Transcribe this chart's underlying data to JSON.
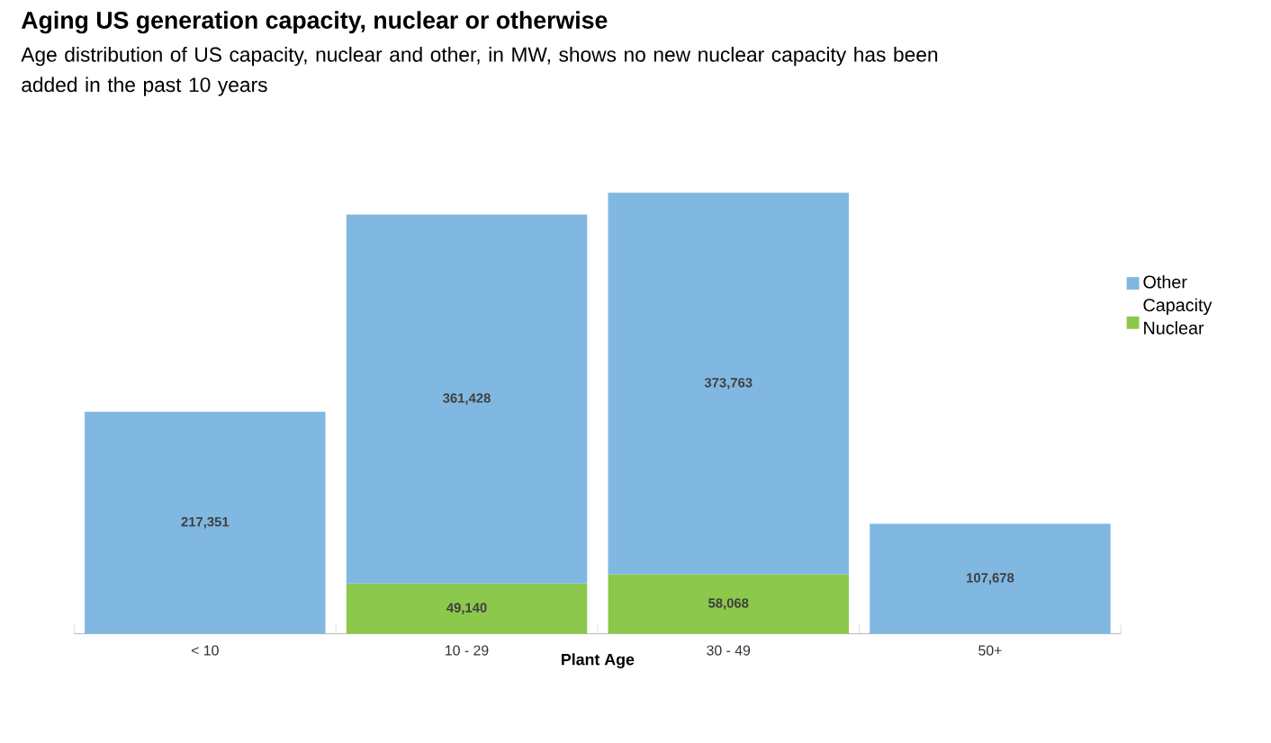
{
  "chart_data": {
    "type": "bar",
    "title": "Aging US generation capacity, nuclear or otherwise",
    "subtitle": "Age distribution of US capacity, nuclear and other, in MW, shows no new nuclear capacity has been added in the past 10 years",
    "xlabel": "Plant Age",
    "categories": [
      "< 10",
      "10 - 29",
      "30 - 49",
      "50+"
    ],
    "stacked": true,
    "series": [
      {
        "name": "Nuclear",
        "color": "#8cc84b",
        "values": [
          null,
          49140,
          58068,
          null
        ],
        "value_labels": [
          null,
          "49,140",
          "58,068",
          null
        ]
      },
      {
        "name": "Other Capacity",
        "color": "#80b8e2",
        "values": [
          217351,
          361428,
          373763,
          107678
        ],
        "value_labels": [
          "217,351",
          "361,428",
          "373,763",
          "107,678"
        ]
      }
    ],
    "legend": "top right"
  }
}
